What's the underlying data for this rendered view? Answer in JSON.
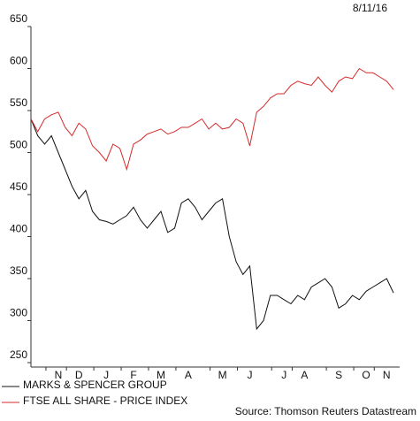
{
  "chart_data": {
    "type": "line",
    "date": "8/11/16",
    "source": "Source: Thomson Reuters Datastream",
    "categories": [
      null,
      null,
      null,
      null,
      "N",
      null,
      null,
      "D",
      null,
      null,
      null,
      "J",
      null,
      null,
      null,
      "F",
      null,
      null,
      null,
      "M",
      null,
      null,
      null,
      "A",
      null,
      null,
      null,
      null,
      "M",
      null,
      null,
      null,
      "J",
      null,
      null,
      null,
      null,
      "J",
      null,
      null,
      "A",
      null,
      null,
      null,
      null,
      "S",
      null,
      null,
      null,
      "O",
      null,
      null,
      "N",
      null
    ],
    "series": [
      {
        "name": "MARKS & SPENCER GROUP",
        "color": "#111111",
        "values": [
          540,
          520,
          510,
          520,
          500,
          480,
          460,
          445,
          455,
          430,
          420,
          418,
          415,
          420,
          425,
          435,
          420,
          410,
          420,
          430,
          405,
          410,
          440,
          445,
          435,
          420,
          430,
          440,
          445,
          400,
          370,
          355,
          365,
          290,
          300,
          330,
          330,
          325,
          320,
          330,
          325,
          340,
          345,
          350,
          340,
          315,
          320,
          330,
          325,
          335,
          340,
          345,
          350,
          333
        ]
      },
      {
        "name": "FTSE ALL SHARE - PRICE INDEX",
        "color": "#d62b2b",
        "values": [
          540,
          525,
          540,
          545,
          548,
          530,
          520,
          535,
          528,
          508,
          500,
          490,
          510,
          505,
          480,
          510,
          515,
          522,
          525,
          528,
          522,
          525,
          530,
          530,
          535,
          540,
          528,
          535,
          528,
          530,
          540,
          535,
          508,
          548,
          555,
          565,
          570,
          570,
          580,
          585,
          582,
          580,
          590,
          580,
          572,
          585,
          590,
          588,
          600,
          595,
          595,
          590,
          585,
          575
        ]
      }
    ],
    "ylim": [
      250,
      650
    ],
    "yticks": [
      250,
      300,
      350,
      400,
      450,
      500,
      550,
      600,
      650
    ]
  }
}
